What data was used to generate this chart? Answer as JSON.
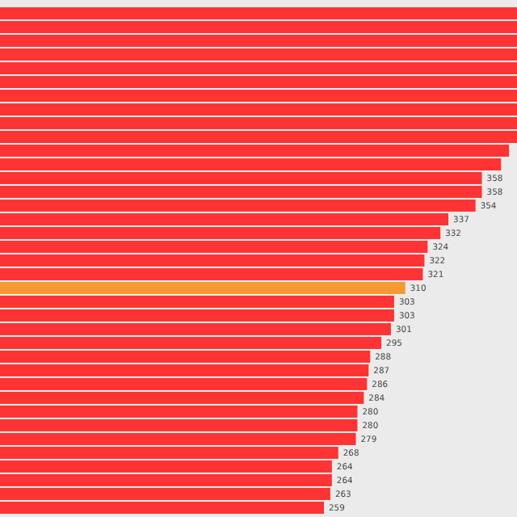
{
  "chart_data": {
    "type": "bar",
    "orientation": "horizontal",
    "tick_labels": false,
    "xlim": [
      56,
      380
    ],
    "categories": [
      null,
      null,
      null,
      null,
      null,
      null,
      null,
      null,
      null,
      null,
      null,
      null,
      null,
      null,
      null,
      null,
      null,
      null,
      null,
      null,
      null,
      null,
      null,
      null,
      null,
      null,
      null,
      null,
      null,
      null,
      null,
      null,
      null,
      null,
      null,
      null,
      null
    ],
    "values": [
      380,
      380,
      380,
      380,
      380,
      380,
      380,
      380,
      380,
      380,
      375,
      370,
      358,
      358,
      354,
      337,
      332,
      324,
      322,
      321,
      310,
      303,
      303,
      301,
      295,
      288,
      287,
      286,
      284,
      280,
      280,
      279,
      268,
      264,
      264,
      263,
      259
    ],
    "value_labels": [
      null,
      null,
      null,
      null,
      null,
      null,
      null,
      null,
      null,
      null,
      null,
      null,
      "358",
      "358",
      "354",
      "337",
      "332",
      "324",
      "322",
      "321",
      "310",
      "303",
      "303",
      "301",
      "295",
      "288",
      "287",
      "286",
      "284",
      "280",
      "280",
      "279",
      "268",
      "264",
      "264",
      "263",
      "259"
    ],
    "colors": [
      "#fe3333",
      "#fe3333",
      "#fe3333",
      "#fe3333",
      "#fe3333",
      "#fe3333",
      "#fe3333",
      "#fe3333",
      "#fe3333",
      "#fe3333",
      "#fe3333",
      "#fe3333",
      "#fe3333",
      "#fe3333",
      "#fe3333",
      "#fe3333",
      "#fe3333",
      "#fe3333",
      "#fe3333",
      "#fe3333",
      "#f59a33",
      "#fe3333",
      "#fe3333",
      "#fe3333",
      "#fe3333",
      "#fe3333",
      "#fe3333",
      "#fe3333",
      "#fe3333",
      "#fe3333",
      "#fe3333",
      "#fe3333",
      "#fe3333",
      "#fe3333",
      "#fe3333",
      "#fe3333",
      "#fe3333"
    ]
  }
}
